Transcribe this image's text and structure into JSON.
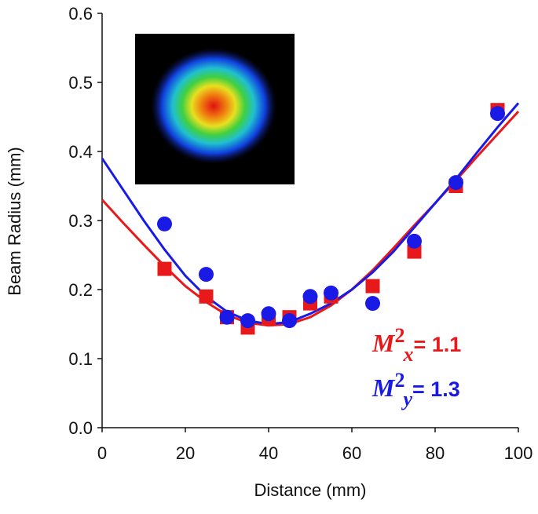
{
  "chart_data": {
    "type": "scatter",
    "xlabel": "Distance   (mm)",
    "ylabel": "Beam Radius   (mm)",
    "xlim": [
      0,
      100
    ],
    "xticks": [
      0,
      20,
      40,
      60,
      80,
      100
    ],
    "ylim": [
      0,
      0.6
    ],
    "yticks": [
      {
        "value": 0,
        "label": "0.0"
      },
      0.1,
      0.2,
      0.3,
      0.4,
      0.5,
      0.6
    ],
    "series": [
      {
        "color": "#e8191b",
        "marker": "square",
        "x": [
          15,
          25,
          30,
          35,
          40,
          45,
          50,
          55,
          65,
          75,
          85,
          95
        ],
        "values": [
          0.23,
          0.19,
          0.16,
          0.145,
          0.158,
          0.16,
          0.18,
          0.19,
          0.205,
          0.255,
          0.35,
          0.46
        ]
      },
      {
        "color": "#1a1ae6",
        "marker": "circle",
        "x": [
          15,
          25,
          30,
          35,
          40,
          45,
          50,
          55,
          65,
          75,
          85,
          95
        ],
        "values": [
          0.295,
          0.222,
          0.16,
          0.155,
          0.165,
          0.155,
          0.19,
          0.195,
          0.18,
          0.27,
          0.355,
          0.455
        ]
      },
      {
        "color": "#e8191b",
        "marker": "line",
        "x": [
          0,
          5,
          10,
          15,
          20,
          25,
          30,
          35,
          40,
          45,
          50,
          55,
          60,
          65,
          70,
          75,
          80,
          85,
          90,
          95,
          100
        ],
        "values": [
          0.33,
          0.297,
          0.265,
          0.234,
          0.205,
          0.182,
          0.163,
          0.152,
          0.148,
          0.15,
          0.16,
          0.177,
          0.2,
          0.228,
          0.26,
          0.293,
          0.325,
          0.358,
          0.392,
          0.425,
          0.458
        ]
      },
      {
        "color": "#1a1ae6",
        "marker": "line",
        "x": [
          0,
          5,
          10,
          15,
          20,
          25,
          30,
          35,
          40,
          45,
          50,
          55,
          60,
          65,
          70,
          75,
          80,
          85,
          90,
          95,
          100
        ],
        "values": [
          0.39,
          0.345,
          0.3,
          0.258,
          0.22,
          0.19,
          0.168,
          0.155,
          0.15,
          0.153,
          0.165,
          0.18,
          0.2,
          0.225,
          0.255,
          0.29,
          0.325,
          0.36,
          0.398,
          0.435,
          0.47
        ]
      }
    ],
    "annotations": [
      {
        "color": "#e8191b",
        "symbol": "M",
        "power": "2",
        "index": "x",
        "text": "= 1.1"
      },
      {
        "color": "#1a1ae6",
        "symbol": "M",
        "power": "2",
        "index": "y",
        "text": "= 1.3"
      }
    ]
  }
}
